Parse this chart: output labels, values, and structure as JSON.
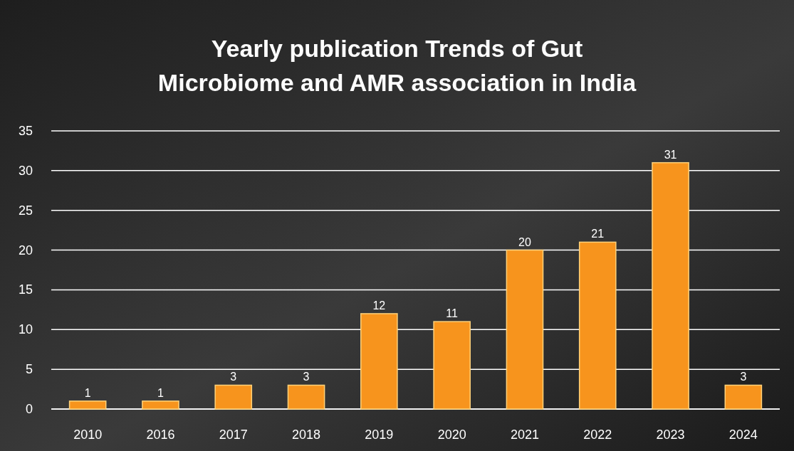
{
  "chart_data": {
    "type": "bar",
    "title": "Yearly publication Trends of Gut Microbiome and AMR association in India",
    "categories": [
      "2010",
      "2016",
      "2017",
      "2018",
      "2019",
      "2020",
      "2021",
      "2022",
      "2023",
      "2024"
    ],
    "values": [
      1,
      1,
      3,
      3,
      12,
      11,
      20,
      21,
      31,
      3
    ],
    "color": "#f7941d",
    "ylim": [
      0,
      35
    ],
    "yticks": [
      0,
      5,
      10,
      15,
      20,
      25,
      30,
      35
    ],
    "grid": "y",
    "data_labels": true
  }
}
